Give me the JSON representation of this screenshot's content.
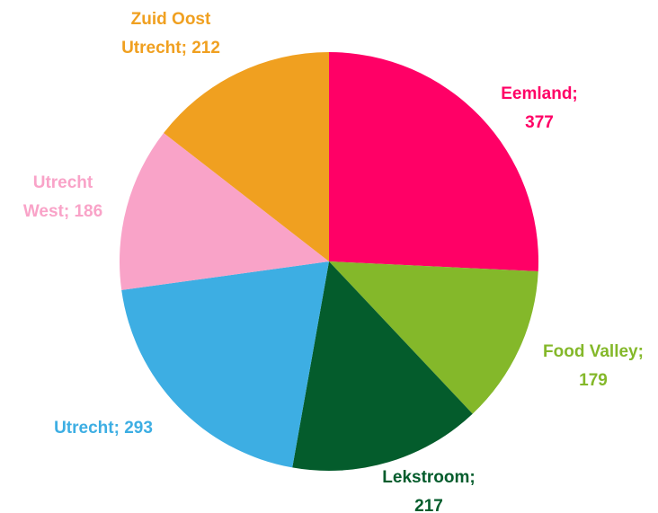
{
  "chart_data": {
    "type": "pie",
    "values": [
      377,
      179,
      217,
      293,
      186,
      212
    ],
    "value_labels": [
      "Eemland; 377",
      "Food Valley; 179",
      "Lekstroom; 217",
      "Utrecht; 293",
      "Utrecht West; 186",
      "Zuid Oost Utrecht; 212"
    ],
    "colors": [
      "#ff0066",
      "#84b82a",
      "#045c2c",
      "#3daee3",
      "#f9a3c8",
      "#f0a020"
    ]
  }
}
